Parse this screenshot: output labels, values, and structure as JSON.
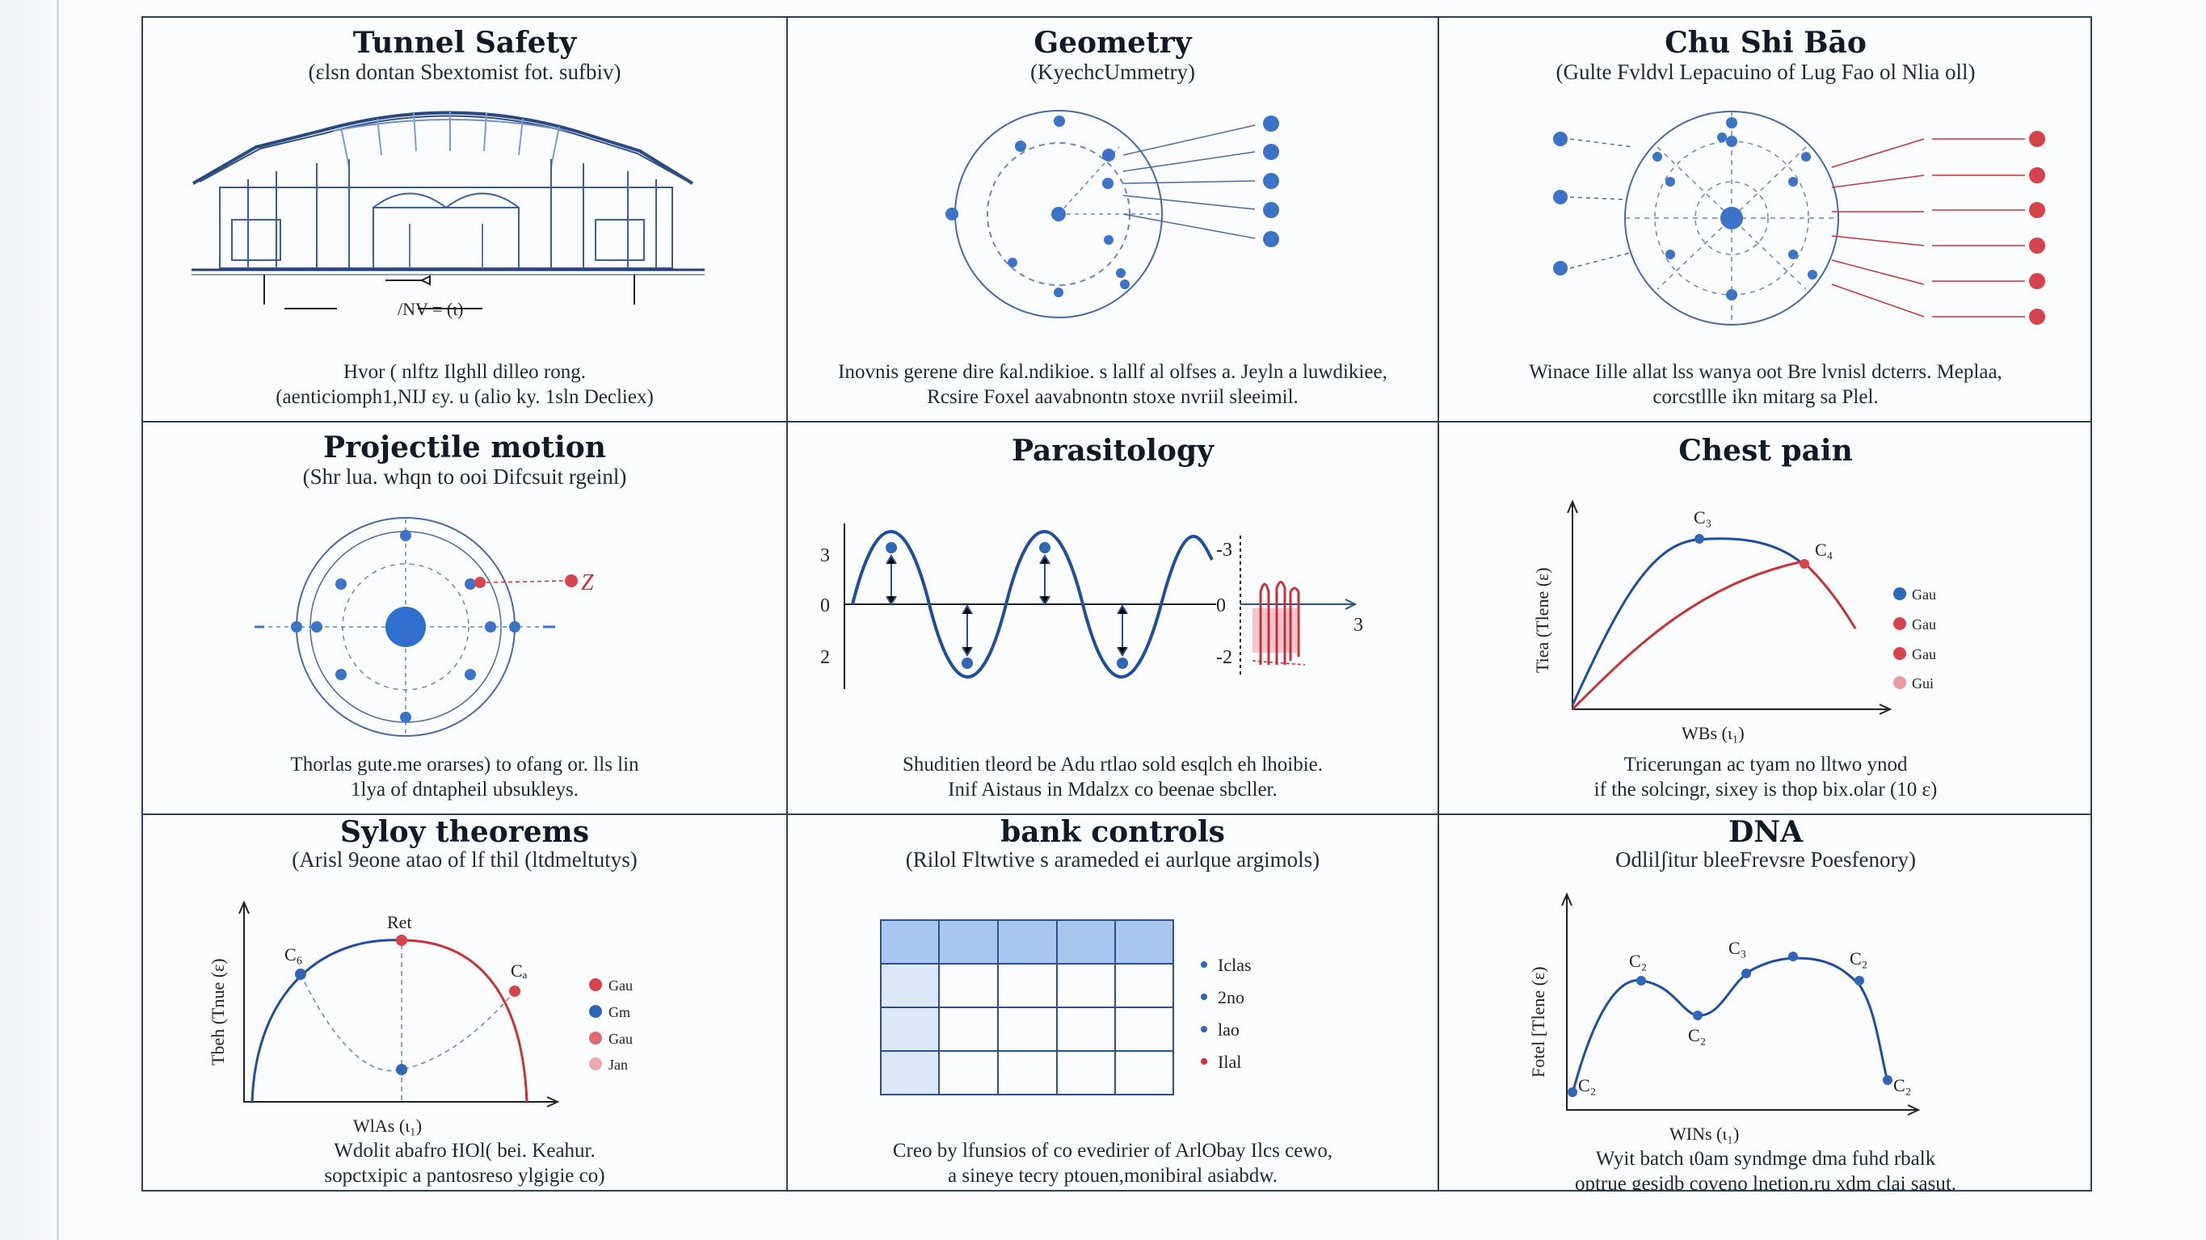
{
  "panels": [
    {
      "title": "Tunnel Safety",
      "subtitle": "(ɛlsn dontan Sbextomist fot. sufbiv)",
      "caption": [
        "Hvor ( nlftz  Ilghll dilleo rong.",
        "(aenticiomph1,NIJ ɛy. u (alio ky. 1sln Decliex)"
      ],
      "labels": [
        "/NV = (ɩ)"
      ]
    },
    {
      "title": "Geometry",
      "subtitle": "(KyechcUmmetry)",
      "caption": [
        "Inovnis gerene dire ƙal.ndikioe. s lallf al olfses a. Jeyln a luwdikiee,",
        "Rcsire Foxel aavabnontn stoxe nvriil sleeimil."
      ]
    },
    {
      "title": "Chu Shi Bāo",
      "subtitle": "(Gulte Fvldvl Lepacuino of Lug Fao ol Nlia oll)",
      "caption": [
        "Winace Iille allat lss wanya oot Bre lvnisl dcterrs. Meplaa,",
        "corcstllle ikn mitarg sa Plel."
      ]
    },
    {
      "title": "Projectile motion",
      "subtitle": "(Shr lua. whqn to ooi Difcsuit rgeinl)",
      "caption": [
        "Thorlas gute.me orarses) to ofang or. lls lin",
        "1lya of dntapheil ubsukleys."
      ],
      "labels": [
        "Z"
      ]
    },
    {
      "title": "Parasitology",
      "subtitle": "",
      "caption": [
        "Shuditien tleord be Adu rtlao sold esqlch eh lhoibie.",
        "Inif Aistaus in Mdalzx co beenae sbcller."
      ],
      "labels": [
        "3",
        "0",
        "2",
        "-3",
        "0",
        "-2",
        "3"
      ]
    },
    {
      "title": "Chest pain",
      "subtitle": "",
      "caption": [
        "Tricerungan ac tyam no lltwo ynod",
        "if the solcingr, sixey is thop bix.olar (10 ɛ)"
      ],
      "labels": [
        "C₃",
        "C₄",
        "Tiea (Tlene (ɛ)",
        "WBs (ɩ₁)"
      ],
      "legend": [
        "Gau",
        "Gau",
        "Gau",
        "Gui"
      ]
    },
    {
      "title": "Syloy theorems",
      "subtitle": "(Arisl 9eone atao of lf thil (ltdmeltutys)",
      "caption": [
        "Wdolit abafro ƗIOl( bei. Keahur.",
        "sopctxipic a pantosreso ylgigie co)"
      ],
      "labels": [
        "Ret",
        "C₆",
        "Cₐ",
        "Tbeh (Tnue (ɛ)",
        "WlAs (ɩ₁)"
      ],
      "legend": [
        "Gau",
        "Gm",
        "Gau",
        "Jan"
      ]
    },
    {
      "title": "bank  controls",
      "subtitle": "(Rilol Fltwtive s arameded ei aurlque argimols)",
      "caption": [
        "Creo by lfunsios of co evedirier of ArlObay Ilcs cewo,",
        "a sineye tecry ptouen,monibiral asiabdw."
      ],
      "legend": [
        "Iclas",
        "2no",
        "lao",
        "Ilal"
      ]
    },
    {
      "title": "DNA",
      "subtitle": "Odlilʃitur bleeFrevsre Poesfenory)",
      "caption": [
        "Wyit batch ɩ0am syndmge dma fuhd rbalk",
        "optrue gesidb coveno lnetion.ru xdm clai sasut."
      ],
      "labels": [
        "C₂",
        "C₂",
        "C₃",
        "C₂",
        "C₂",
        "C₂",
        "Fotel [Tlene (ɛ)",
        "WINs (ɩ₁)"
      ]
    }
  ],
  "colors": {
    "blue": "#2f66b8",
    "navy": "#1d3f8f",
    "red": "#c9303a",
    "pink": "#e89aa1",
    "grid": "#2f4054"
  }
}
